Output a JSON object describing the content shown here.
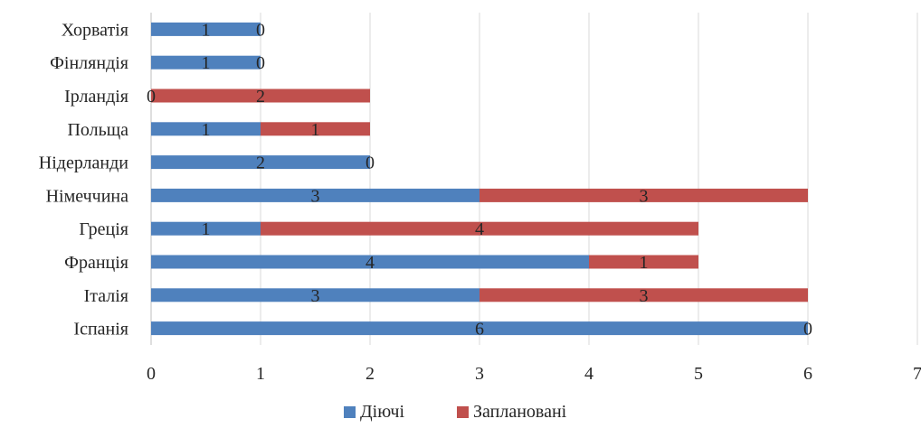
{
  "chart_data": {
    "type": "bar",
    "orientation": "horizontal",
    "stacked": true,
    "categories": [
      "Іспанія",
      "Італія",
      "Франція",
      "Греція",
      "Німеччина",
      "Нідерланди",
      "Польща",
      "Ірландія",
      "Фінляндія",
      "Хорватія"
    ],
    "series": [
      {
        "name": "Діючі",
        "color": "#4f81bd",
        "values": [
          6,
          3,
          4,
          1,
          3,
          2,
          1,
          0,
          1,
          1
        ]
      },
      {
        "name": "Заплановані",
        "color": "#c0504d",
        "values": [
          0,
          3,
          1,
          4,
          3,
          0,
          1,
          2,
          0,
          0
        ]
      }
    ],
    "xlim": [
      0,
      7
    ],
    "x_ticks": [
      0,
      1,
      2,
      3,
      4,
      5,
      6,
      7
    ],
    "grid": true,
    "legend_position": "bottom",
    "data_labels": true
  }
}
